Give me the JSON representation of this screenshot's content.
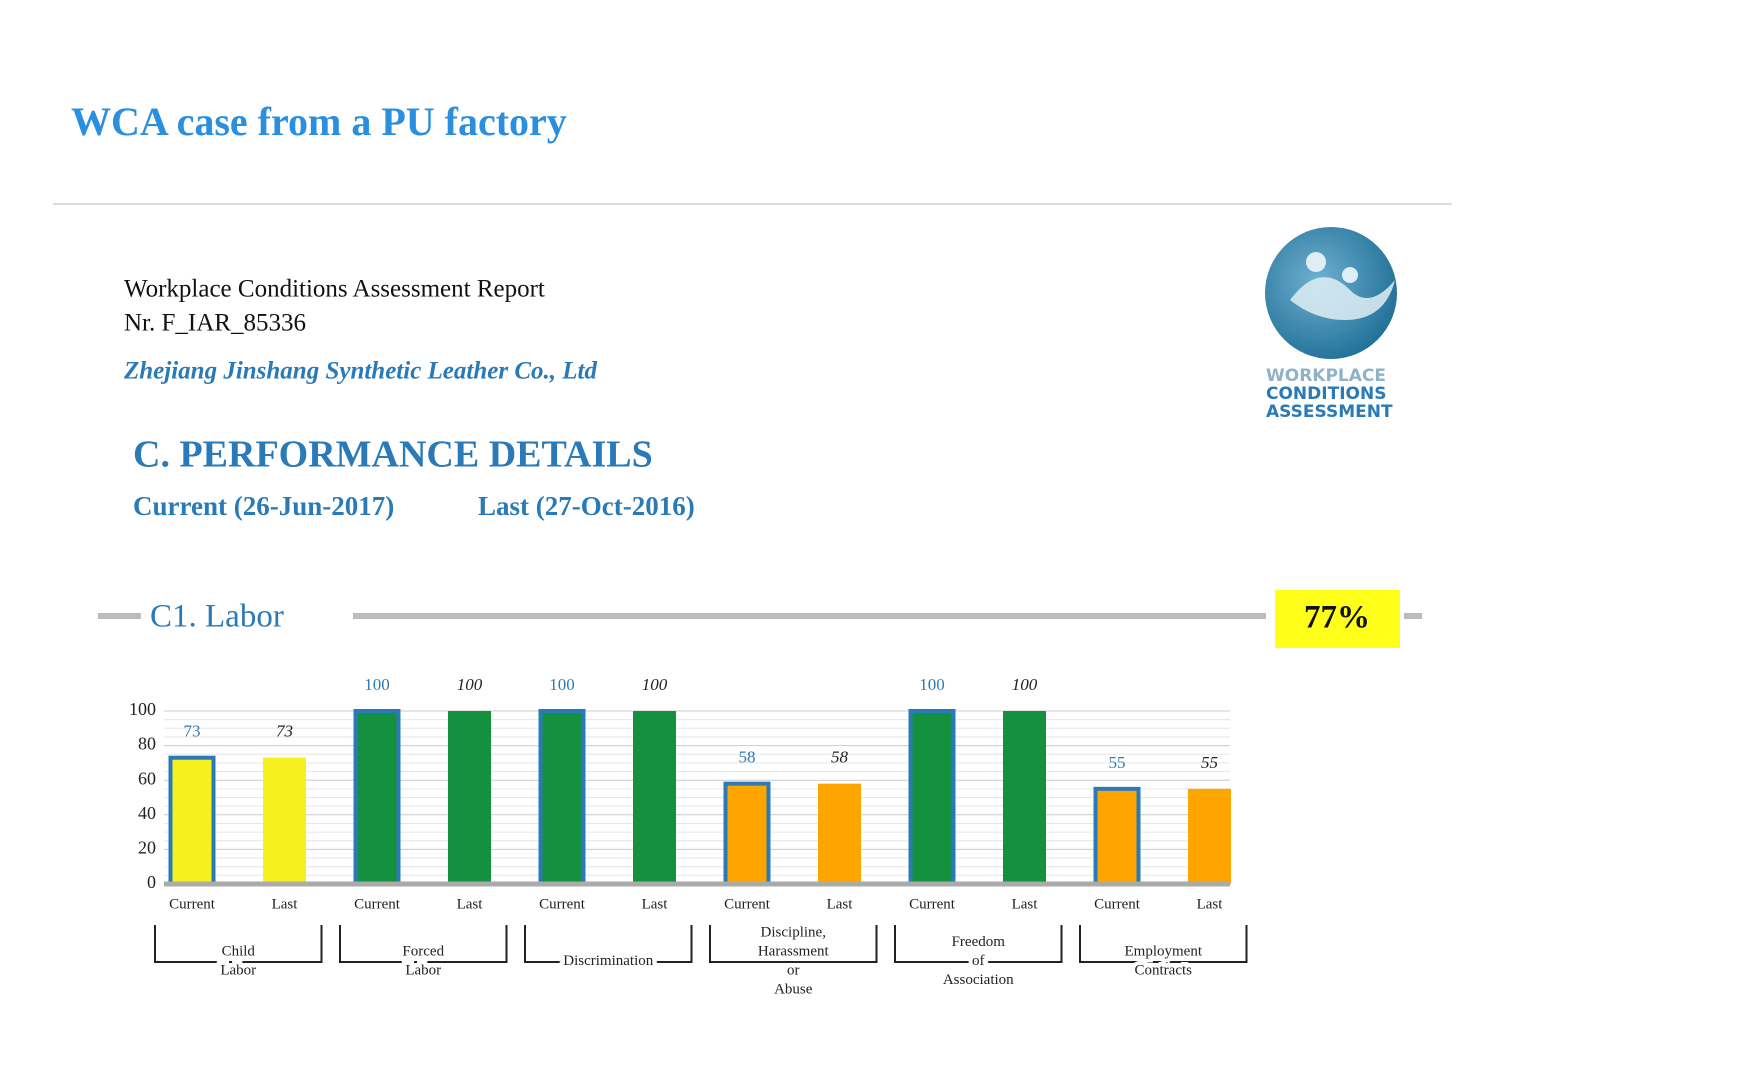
{
  "slide": {
    "title": "WCA case from a PU factory",
    "report_title": "Workplace Conditions Assessment Report",
    "report_no": "Nr. F_IAR_85336",
    "company": "Zhejiang Jinshang Synthetic Leather Co., Ltd",
    "section": "C. PERFORMANCE DETAILS",
    "current_label": "Current (26-Jun-2017)",
    "last_label": "Last (27-Oct-2016)",
    "logo_text": [
      "WORKPLACE",
      "CONDITIONS",
      "ASSESSMENT"
    ]
  },
  "chart_data": {
    "type": "bar",
    "title": "C1. Labor",
    "score": "77%",
    "categories": [
      "Current",
      "Last",
      "Current",
      "Last",
      "Current",
      "Last",
      "Current",
      "Last",
      "Current",
      "Last",
      "Current",
      "Last"
    ],
    "groups": [
      "Child Labor",
      "Forced Labor",
      "Discrimination",
      "Discipline, Harassment or Abuse",
      "Freedom of Association",
      "Employment Contracts"
    ],
    "values": [
      73,
      73,
      100,
      100,
      100,
      100,
      58,
      58,
      100,
      100,
      55,
      55
    ],
    "colors": [
      "#f5f01e",
      "#f5f01e",
      "#13913e",
      "#13913e",
      "#13913e",
      "#13913e",
      "#ffa500",
      "#ffa500",
      "#13913e",
      "#13913e",
      "#ffa500",
      "#ffa500"
    ],
    "current_outline": "#2a7ab8",
    "ylim": [
      0,
      100
    ],
    "yticks": [
      0,
      20,
      40,
      60,
      80,
      100
    ],
    "grid": true
  }
}
